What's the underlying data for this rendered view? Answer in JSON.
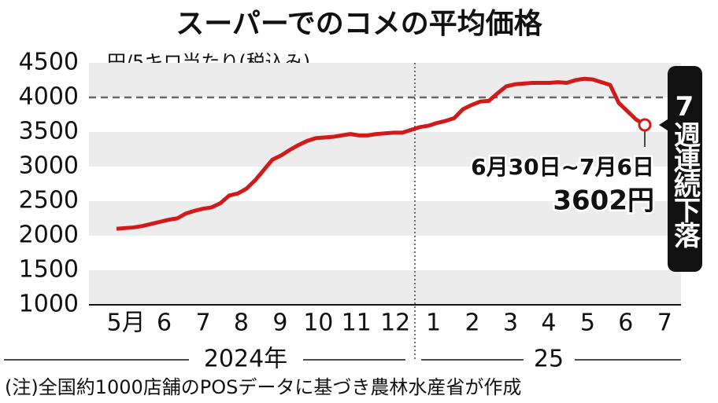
{
  "chart_data": {
    "type": "line",
    "title": "スーパーでのコメの平均価格",
    "subtitle": "円/5キロ当たり(税込み)",
    "x": [
      0,
      1,
      2,
      3,
      4,
      5,
      6,
      7,
      8,
      9,
      10,
      11,
      12,
      13,
      14,
      15,
      16,
      17,
      18,
      19,
      20,
      21,
      22,
      23,
      24,
      25,
      26,
      27,
      28,
      29,
      30,
      31,
      32,
      33,
      34,
      35,
      36,
      37,
      38,
      39,
      40,
      41,
      42,
      43,
      44,
      45,
      46,
      47,
      48,
      49,
      50,
      51,
      52,
      53,
      54,
      55,
      56,
      57,
      58,
      59,
      60,
      61
    ],
    "series": [
      {
        "color": "#d11a1a",
        "values": [
          2100,
          2110,
          2120,
          2140,
          2170,
          2200,
          2230,
          2250,
          2320,
          2360,
          2390,
          2410,
          2470,
          2580,
          2610,
          2680,
          2800,
          2950,
          3100,
          3160,
          3240,
          3310,
          3370,
          3410,
          3420,
          3430,
          3450,
          3470,
          3450,
          3450,
          3470,
          3480,
          3490,
          3490,
          3530,
          3570,
          3590,
          3630,
          3660,
          3700,
          3830,
          3890,
          3940,
          3950,
          4060,
          4160,
          4190,
          4200,
          4210,
          4210,
          4210,
          4220,
          4210,
          4250,
          4270,
          4260,
          4220,
          4180,
          3920,
          3800,
          3680,
          3602
        ],
        "value_labels": [
          null,
          null,
          null,
          null,
          null,
          null,
          null,
          null,
          null,
          null,
          null,
          null,
          null,
          null,
          null,
          null,
          null,
          null,
          null,
          null,
          null,
          null,
          null,
          null,
          null,
          null,
          null,
          null,
          null,
          null,
          null,
          null,
          null,
          null,
          null,
          null,
          null,
          null,
          null,
          null,
          null,
          null,
          null,
          null,
          null,
          null,
          null,
          null,
          null,
          null,
          null,
          null,
          null,
          null,
          null,
          null,
          null,
          null,
          null,
          null,
          null,
          "3602円"
        ]
      }
    ],
    "xlim": [
      0,
      65
    ],
    "xticks": [
      {
        "value": 1.1,
        "label": "5月"
      },
      {
        "value": 5.5,
        "label": "6"
      },
      {
        "value": 10.0,
        "label": "7"
      },
      {
        "value": 14.4,
        "label": "8"
      },
      {
        "value": 18.9,
        "label": "9"
      },
      {
        "value": 23.3,
        "label": "10"
      },
      {
        "value": 27.7,
        "label": "11"
      },
      {
        "value": 32.2,
        "label": "12"
      },
      {
        "value": 36.6,
        "label": "1"
      },
      {
        "value": 41.1,
        "label": "2"
      },
      {
        "value": 45.5,
        "label": "3"
      },
      {
        "value": 49.9,
        "label": "4"
      },
      {
        "value": 54.4,
        "label": "5"
      },
      {
        "value": 58.8,
        "label": "6"
      },
      {
        "value": 63.3,
        "label": "7"
      }
    ],
    "years": [
      "2024年",
      "25"
    ],
    "ylim": [
      1000,
      4500
    ],
    "yticks": [
      1000,
      1500,
      2000,
      2500,
      3000,
      3500,
      4000,
      4500
    ],
    "reference_line": 4000,
    "annotations": [
      "6月30日~7月6日",
      "7週連続下落"
    ],
    "note": "(注)全国約1000店舗のPOSデータに基づき農林水産省が作成"
  }
}
